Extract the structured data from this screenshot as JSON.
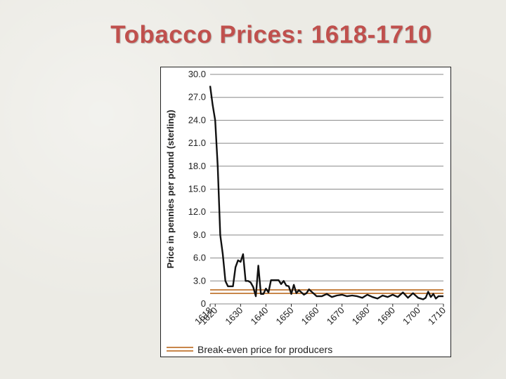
{
  "slide": {
    "title": "Tobacco Prices:  1618-1710"
  },
  "colors": {
    "title": "#c0504d",
    "series_line": "#111111",
    "break_even": "#c8864a",
    "grid": "#888888"
  },
  "chart_data": {
    "type": "line",
    "title": "Tobacco Prices:  1618-1710",
    "ylabel": "Price in pennies per pound (sterling)",
    "xlabel": "",
    "ylim": [
      0,
      30
    ],
    "xlim": [
      1618,
      1710
    ],
    "y_ticks": [
      0,
      3,
      6,
      9,
      12,
      15,
      18,
      21,
      24,
      27,
      30
    ],
    "y_tick_labels": [
      "0",
      "3.0",
      "6.0",
      "9.0",
      "12.0",
      "15.0",
      "18.0",
      "21.0",
      "24.0",
      "27.0",
      "30.0"
    ],
    "x_ticks": [
      1618,
      1620,
      1630,
      1640,
      1650,
      1660,
      1670,
      1680,
      1690,
      1700,
      1710
    ],
    "x_tick_labels": [
      "1618",
      "1620",
      "1630",
      "1640",
      "1650",
      "1660",
      "1670",
      "1680",
      "1690",
      "1700",
      "1710"
    ],
    "grid": true,
    "series": [
      {
        "x": [
          1618,
          1619,
          1620,
          1621,
          1622,
          1623,
          1624,
          1625,
          1626,
          1627,
          1628,
          1629,
          1630,
          1631,
          1632,
          1633,
          1634,
          1635,
          1636,
          1637,
          1638,
          1639,
          1640,
          1641,
          1642,
          1643,
          1644,
          1645,
          1646,
          1647,
          1648,
          1649,
          1650,
          1651,
          1652,
          1653,
          1654,
          1655,
          1656,
          1657,
          1658,
          1659,
          1660,
          1662,
          1664,
          1666,
          1668,
          1670,
          1672,
          1674,
          1676,
          1678,
          1680,
          1682,
          1684,
          1686,
          1688,
          1690,
          1692,
          1694,
          1696,
          1698,
          1700,
          1702,
          1703,
          1704,
          1705,
          1706,
          1707,
          1708,
          1710
        ],
        "values": [
          28.5,
          26.0,
          24.0,
          18.0,
          9.0,
          6.5,
          3.0,
          2.3,
          2.3,
          2.3,
          4.8,
          5.7,
          5.5,
          6.5,
          3.0,
          3.0,
          2.8,
          2.2,
          1.0,
          5.0,
          1.3,
          1.3,
          2.0,
          1.5,
          3.1,
          3.1,
          3.1,
          3.1,
          2.6,
          3.0,
          2.4,
          2.3,
          1.3,
          2.5,
          1.4,
          1.8,
          1.5,
          1.2,
          1.4,
          1.9,
          1.6,
          1.3,
          1.0,
          1.0,
          1.3,
          0.9,
          1.1,
          1.2,
          1.0,
          1.1,
          1.0,
          0.8,
          1.2,
          0.9,
          0.7,
          1.1,
          0.9,
          1.2,
          0.9,
          1.5,
          0.8,
          1.4,
          0.8,
          0.6,
          0.8,
          1.6,
          0.9,
          1.3,
          0.7,
          1.0,
          1.0
        ]
      }
    ],
    "break_even": {
      "label": "Break-even price for producers",
      "value": 1.6
    }
  }
}
